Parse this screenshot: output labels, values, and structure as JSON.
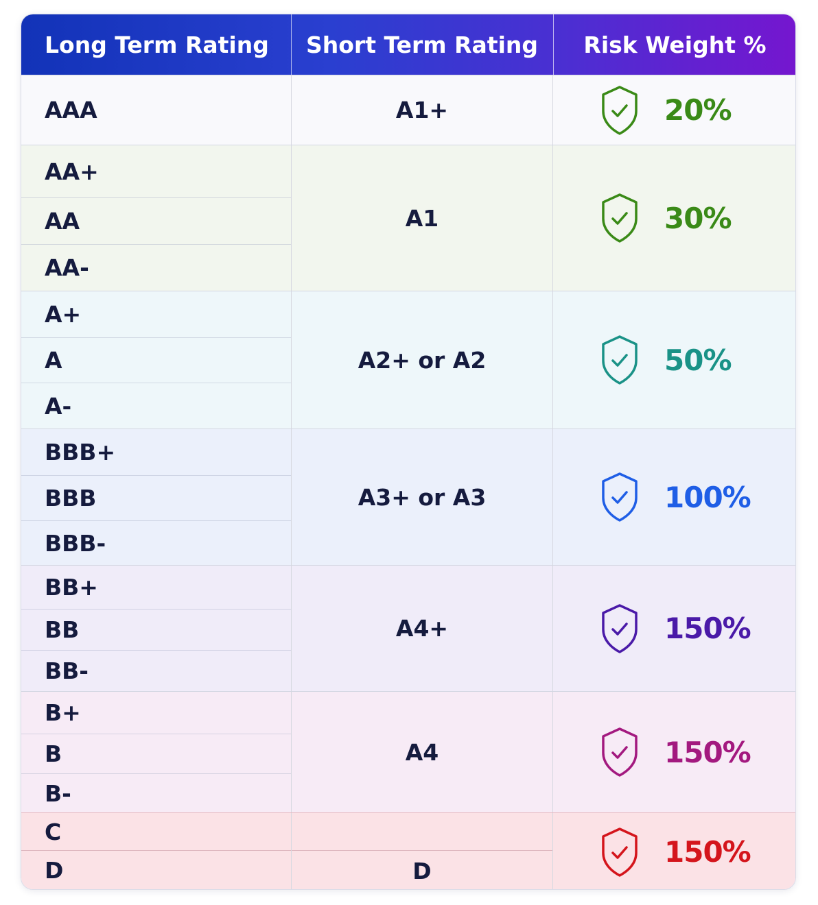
{
  "header": {
    "long_term": "Long Term Rating",
    "short_term": "Short Term Rating",
    "risk_weight": "Risk Weight %"
  },
  "rows": [
    {
      "long": [
        "AAA"
      ],
      "short": "A1+",
      "weight": "20%",
      "color": "#3a8a17",
      "icon": "shield-check-icon"
    },
    {
      "long": [
        "AA+",
        "AA",
        "AA-"
      ],
      "short": "A1",
      "weight": "30%",
      "color": "#3a8a17",
      "icon": "shield-check-icon"
    },
    {
      "long": [
        "A+",
        "A",
        "A-"
      ],
      "short": "A2+ or A2",
      "weight": "50%",
      "color": "#1a9287",
      "icon": "shield-check-icon"
    },
    {
      "long": [
        "BBB+",
        "BBB",
        "BBB-"
      ],
      "short": "A3+ or A3",
      "weight": "100%",
      "color": "#1f5ee6",
      "icon": "shield-check-icon"
    },
    {
      "long": [
        "BB+",
        "BB",
        "BB-"
      ],
      "short": "A4+",
      "weight": "150%",
      "color": "#4a1aa8",
      "icon": "shield-check-icon"
    },
    {
      "long": [
        "B+",
        "B",
        "B-"
      ],
      "short": "A4",
      "weight": "150%",
      "color": "#a3197f",
      "icon": "shield-check-icon"
    },
    {
      "long": [
        "C",
        "D"
      ],
      "short": "D",
      "weight": "150%",
      "color": "#d4151c",
      "icon": "shield-check-icon"
    }
  ]
}
